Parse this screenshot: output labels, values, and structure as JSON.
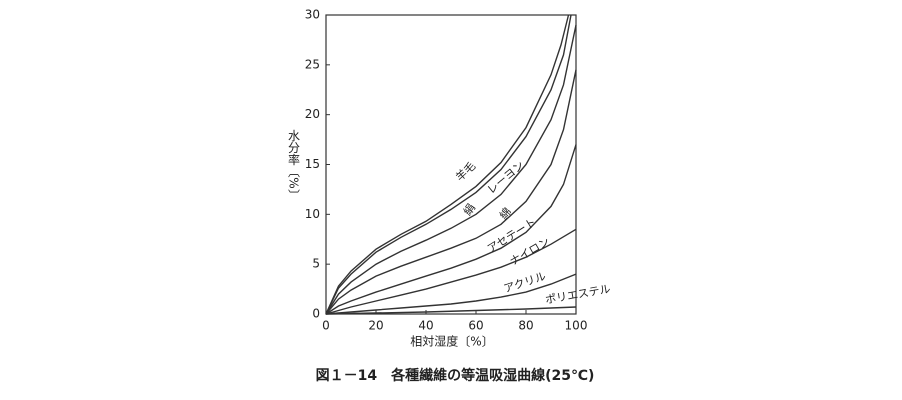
{
  "chart_data": {
    "type": "line",
    "caption": "図１－14　各種繊維の等温吸湿曲線(25℃)",
    "xlabel": "相対湿度〔%〕",
    "ylabel": "水分率〔%〕",
    "xlim": [
      0,
      100
    ],
    "xticks": [
      0,
      20,
      40,
      60,
      80,
      100
    ],
    "ylim": [
      0,
      30
    ],
    "yticks": [
      0,
      5,
      10,
      15,
      20,
      25,
      30
    ],
    "series": [
      {
        "name": "羊毛",
        "color": "#333333",
        "x": [
          0,
          5,
          10,
          20,
          30,
          40,
          50,
          60,
          70,
          80,
          90,
          94,
          97
        ],
        "values": [
          0,
          2.8,
          4.3,
          6.5,
          8,
          9.3,
          11,
          12.8,
          15.2,
          18.7,
          24,
          27,
          30
        ]
      },
      {
        "name": "レーヨン",
        "color": "#333333",
        "x": [
          0,
          5,
          10,
          20,
          30,
          40,
          50,
          60,
          70,
          80,
          90,
          95,
          98
        ],
        "values": [
          0,
          2.6,
          4,
          6.2,
          7.7,
          9,
          10.5,
          12.2,
          14.5,
          17.8,
          22.5,
          26,
          30
        ]
      },
      {
        "name": "絹",
        "color": "#333333",
        "x": [
          0,
          5,
          10,
          20,
          30,
          40,
          50,
          60,
          70,
          80,
          90,
          95,
          100
        ],
        "values": [
          0,
          2,
          3.2,
          5,
          6.3,
          7.4,
          8.6,
          10,
          12,
          15,
          19.5,
          23,
          29
        ]
      },
      {
        "name": "綿",
        "color": "#333333",
        "x": [
          0,
          5,
          10,
          20,
          30,
          40,
          50,
          60,
          70,
          80,
          90,
          95,
          100
        ],
        "values": [
          0,
          1.5,
          2.4,
          3.8,
          4.8,
          5.7,
          6.6,
          7.6,
          9,
          11.3,
          15,
          18.5,
          24.5
        ]
      },
      {
        "name": "アセテート",
        "color": "#333333",
        "x": [
          0,
          5,
          10,
          20,
          30,
          40,
          50,
          60,
          70,
          80,
          90,
          95,
          100
        ],
        "values": [
          0,
          0.8,
          1.3,
          2.2,
          3,
          3.8,
          4.6,
          5.5,
          6.6,
          8.2,
          10.8,
          13,
          17
        ]
      },
      {
        "name": "ナイロン",
        "color": "#333333",
        "x": [
          0,
          10,
          20,
          30,
          40,
          50,
          60,
          70,
          80,
          90,
          100
        ],
        "values": [
          0,
          0.7,
          1.3,
          1.9,
          2.5,
          3.2,
          3.9,
          4.7,
          5.7,
          7,
          8.5
        ]
      },
      {
        "name": "アクリル",
        "color": "#333333",
        "x": [
          0,
          10,
          20,
          30,
          40,
          50,
          60,
          70,
          80,
          90,
          100
        ],
        "values": [
          0,
          0.2,
          0.4,
          0.6,
          0.8,
          1,
          1.3,
          1.7,
          2.2,
          3,
          4
        ]
      },
      {
        "name": "ポリエステル",
        "color": "#333333",
        "x": [
          0,
          20,
          40,
          60,
          80,
          100
        ],
        "values": [
          0,
          0.1,
          0.2,
          0.35,
          0.5,
          0.7
        ]
      }
    ]
  }
}
